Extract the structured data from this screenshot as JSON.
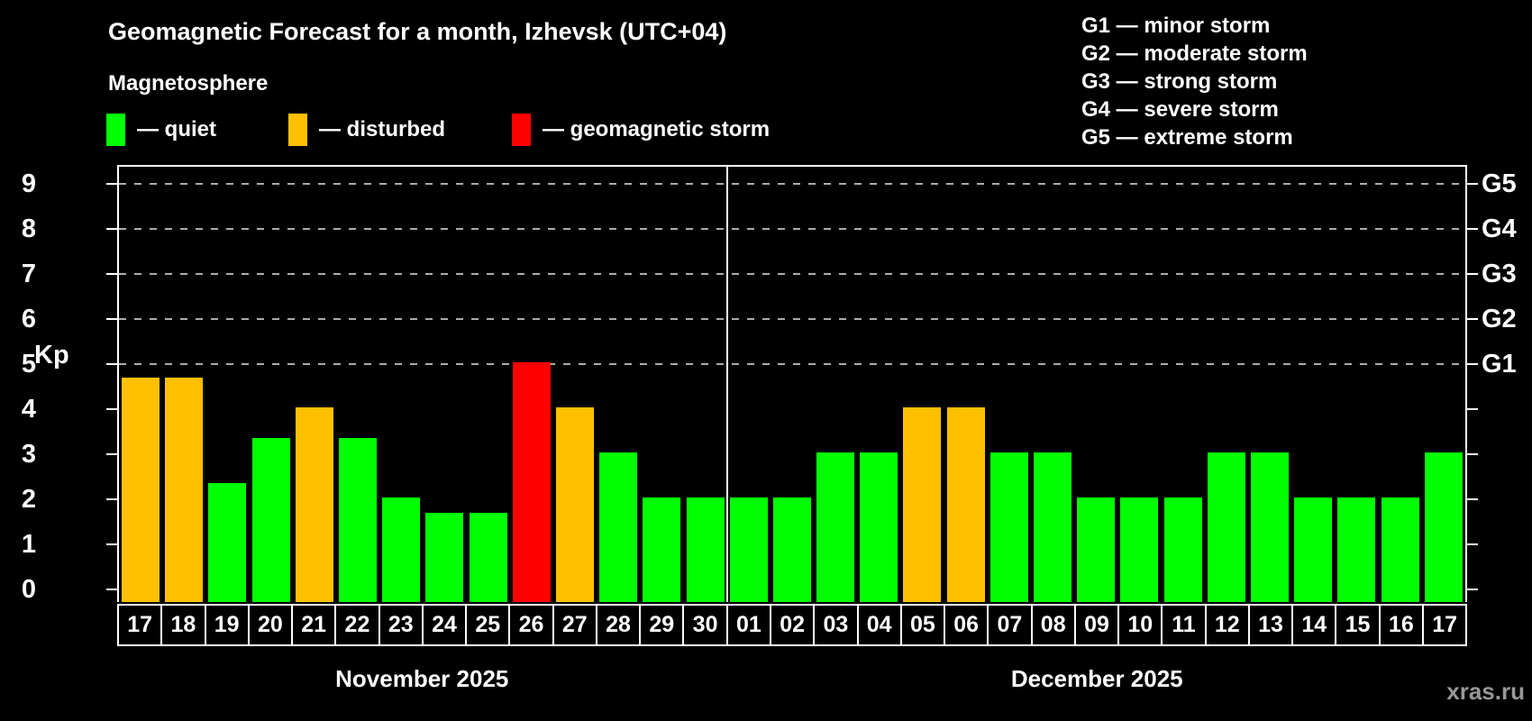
{
  "title": "Geomagnetic Forecast for a month, Izhevsk (UTC+04)",
  "subtitle": "Magnetosphere",
  "legend": {
    "items": [
      {
        "key": "quiet",
        "label": "— quiet",
        "color": "#00ff00"
      },
      {
        "key": "disturbed",
        "label": "— disturbed",
        "color": "#ffc000"
      },
      {
        "key": "storm",
        "label": "— geomagnetic storm",
        "color": "#ff0000"
      }
    ]
  },
  "g_legend": [
    "G1 — minor storm",
    "G2 — moderate storm",
    "G3 — strong storm",
    "G4 — severe storm",
    "G5 — extreme storm"
  ],
  "watermark": "xras.ru",
  "chart_data": {
    "type": "bar",
    "title": "Geomagnetic Forecast for a month, Izhevsk (UTC+04)",
    "ylabel": "Kp",
    "ylim": [
      0,
      9.7
    ],
    "yticks": [
      0,
      1,
      2,
      3,
      4,
      5,
      6,
      7,
      8,
      9
    ],
    "grid_levels": [
      5,
      6,
      7,
      8,
      9
    ],
    "grid_on": true,
    "right_axis_labels": [
      {
        "label": "G1",
        "level": 5
      },
      {
        "label": "G2",
        "level": 6
      },
      {
        "label": "G3",
        "level": 7
      },
      {
        "label": "G4",
        "level": 8
      },
      {
        "label": "G5",
        "level": 9
      }
    ],
    "colors": {
      "quiet": "#00ff00",
      "disturbed": "#ffc000",
      "storm": "#ff0000"
    },
    "months": [
      {
        "label": "November 2025",
        "days": 14
      },
      {
        "label": "December 2025",
        "days": 17
      }
    ],
    "bars": [
      {
        "day": "17",
        "month": "November 2025",
        "value": 4.67,
        "status": "disturbed"
      },
      {
        "day": "18",
        "month": "November 2025",
        "value": 4.67,
        "status": "disturbed"
      },
      {
        "day": "19",
        "month": "November 2025",
        "value": 2.33,
        "status": "quiet"
      },
      {
        "day": "20",
        "month": "November 2025",
        "value": 3.33,
        "status": "quiet"
      },
      {
        "day": "21",
        "month": "November 2025",
        "value": 4.0,
        "status": "disturbed"
      },
      {
        "day": "22",
        "month": "November 2025",
        "value": 3.33,
        "status": "quiet"
      },
      {
        "day": "23",
        "month": "November 2025",
        "value": 2.0,
        "status": "quiet"
      },
      {
        "day": "24",
        "month": "November 2025",
        "value": 1.67,
        "status": "quiet"
      },
      {
        "day": "25",
        "month": "November 2025",
        "value": 1.67,
        "status": "quiet"
      },
      {
        "day": "26",
        "month": "November 2025",
        "value": 5.0,
        "status": "storm"
      },
      {
        "day": "27",
        "month": "November 2025",
        "value": 4.0,
        "status": "disturbed"
      },
      {
        "day": "28",
        "month": "November 2025",
        "value": 3.0,
        "status": "quiet"
      },
      {
        "day": "29",
        "month": "November 2025",
        "value": 2.0,
        "status": "quiet"
      },
      {
        "day": "30",
        "month": "November 2025",
        "value": 2.0,
        "status": "quiet"
      },
      {
        "day": "01",
        "month": "December 2025",
        "value": 2.0,
        "status": "quiet"
      },
      {
        "day": "02",
        "month": "December 2025",
        "value": 2.0,
        "status": "quiet"
      },
      {
        "day": "03",
        "month": "December 2025",
        "value": 3.0,
        "status": "quiet"
      },
      {
        "day": "04",
        "month": "December 2025",
        "value": 3.0,
        "status": "quiet"
      },
      {
        "day": "05",
        "month": "December 2025",
        "value": 4.0,
        "status": "disturbed"
      },
      {
        "day": "06",
        "month": "December 2025",
        "value": 4.0,
        "status": "disturbed"
      },
      {
        "day": "07",
        "month": "December 2025",
        "value": 3.0,
        "status": "quiet"
      },
      {
        "day": "08",
        "month": "December 2025",
        "value": 3.0,
        "status": "quiet"
      },
      {
        "day": "09",
        "month": "December 2025",
        "value": 2.0,
        "status": "quiet"
      },
      {
        "day": "10",
        "month": "December 2025",
        "value": 2.0,
        "status": "quiet"
      },
      {
        "day": "11",
        "month": "December 2025",
        "value": 2.0,
        "status": "quiet"
      },
      {
        "day": "12",
        "month": "December 2025",
        "value": 3.0,
        "status": "quiet"
      },
      {
        "day": "13",
        "month": "December 2025",
        "value": 3.0,
        "status": "quiet"
      },
      {
        "day": "14",
        "month": "December 2025",
        "value": 2.0,
        "status": "quiet"
      },
      {
        "day": "15",
        "month": "December 2025",
        "value": 2.0,
        "status": "quiet"
      },
      {
        "day": "16",
        "month": "December 2025",
        "value": 2.0,
        "status": "quiet"
      },
      {
        "day": "17",
        "month": "December 2025",
        "value": 3.0,
        "status": "quiet"
      }
    ]
  }
}
